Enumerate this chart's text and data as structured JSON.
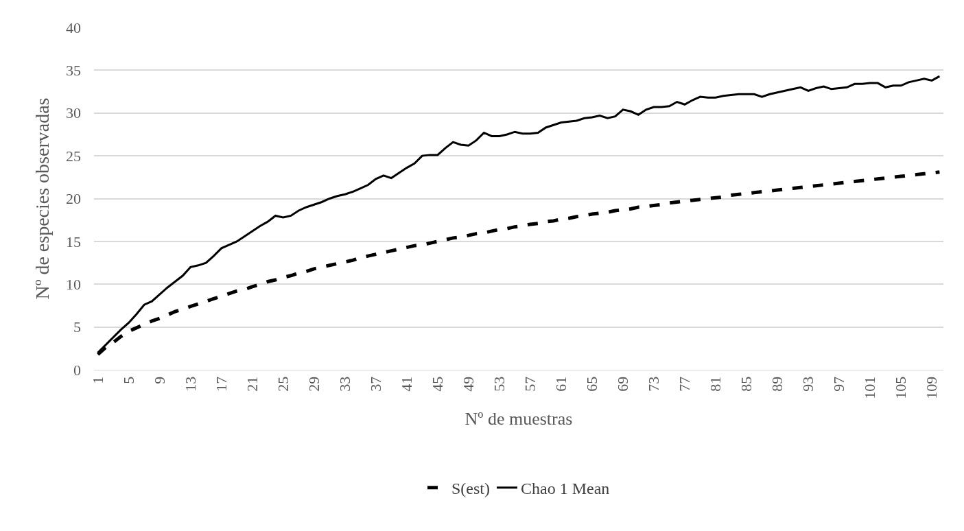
{
  "chart_data": {
    "type": "line",
    "xlabel": "Nº de muestras",
    "ylabel": "Nº de especies observadas",
    "categories": [
      "1",
      null,
      null,
      null,
      "5",
      null,
      null,
      null,
      "9",
      null,
      null,
      null,
      "13",
      null,
      null,
      null,
      "17",
      null,
      null,
      null,
      "21",
      null,
      null,
      null,
      "25",
      null,
      null,
      null,
      "29",
      null,
      null,
      null,
      "33",
      null,
      null,
      null,
      "37",
      null,
      null,
      null,
      "41",
      null,
      null,
      null,
      "45",
      null,
      null,
      null,
      "49",
      null,
      null,
      null,
      "53",
      null,
      null,
      null,
      "57",
      null,
      null,
      null,
      "61",
      null,
      null,
      null,
      "65",
      null,
      null,
      null,
      "69",
      null,
      null,
      null,
      "73",
      null,
      null,
      null,
      "77",
      null,
      null,
      null,
      "81",
      null,
      null,
      null,
      "85",
      null,
      null,
      null,
      "89",
      null,
      null,
      null,
      "93",
      null,
      null,
      null,
      "97",
      null,
      null,
      null,
      "101",
      null,
      null,
      null,
      "105",
      null,
      null,
      null,
      "109",
      null
    ],
    "series": [
      {
        "name": "S(est)",
        "color": "#000000",
        "line_style": "dashed",
        "values": [
          1.8,
          2.6,
          3.2,
          3.9,
          4.5,
          4.9,
          5.3,
          5.7,
          6.0,
          6.4,
          6.8,
          7.1,
          7.4,
          7.7,
          8.0,
          8.3,
          8.6,
          8.9,
          9.2,
          9.4,
          9.7,
          10.0,
          10.3,
          10.5,
          10.8,
          11.0,
          11.3,
          11.5,
          11.8,
          12.0,
          12.2,
          12.4,
          12.6,
          12.8,
          13.1,
          13.3,
          13.5,
          13.7,
          13.9,
          14.1,
          14.3,
          14.5,
          14.6,
          14.8,
          15.0,
          15.2,
          15.4,
          15.5,
          15.7,
          15.9,
          16.0,
          16.2,
          16.4,
          16.5,
          16.7,
          16.8,
          17.0,
          17.1,
          17.3,
          17.4,
          17.6,
          17.7,
          17.9,
          18.0,
          18.2,
          18.3,
          18.4,
          18.6,
          18.7,
          18.8,
          19.0,
          19.1,
          19.2,
          19.3,
          19.5,
          19.6,
          19.7,
          19.8,
          19.9,
          20.0,
          20.1,
          20.2,
          20.4,
          20.5,
          20.6,
          20.7,
          20.8,
          20.9,
          21.0,
          21.1,
          21.2,
          21.3,
          21.4,
          21.5,
          21.6,
          21.7,
          21.8,
          21.9,
          22.0,
          22.1,
          22.2,
          22.3,
          22.4,
          22.5,
          22.6,
          22.7,
          22.8,
          22.9,
          23.0,
          23.1
        ]
      },
      {
        "name": "Chao 1 Mean",
        "color": "#000000",
        "line_style": "solid",
        "values": [
          2.0,
          2.9,
          3.8,
          4.7,
          5.5,
          6.5,
          7.6,
          8.0,
          8.8,
          9.6,
          10.3,
          11.0,
          12.0,
          12.2,
          12.5,
          13.3,
          14.2,
          14.6,
          15.0,
          15.6,
          16.2,
          16.8,
          17.3,
          18.0,
          17.8,
          18.0,
          18.6,
          19.0,
          19.3,
          19.6,
          20.0,
          20.3,
          20.5,
          20.8,
          21.2,
          21.6,
          22.3,
          22.7,
          22.4,
          23.0,
          23.6,
          24.1,
          25.0,
          25.1,
          25.1,
          25.9,
          26.6,
          26.3,
          26.2,
          26.8,
          27.7,
          27.3,
          27.3,
          27.5,
          27.8,
          27.6,
          27.6,
          27.7,
          28.3,
          28.6,
          28.9,
          29.0,
          29.1,
          29.4,
          29.5,
          29.7,
          29.4,
          29.6,
          30.4,
          30.2,
          29.8,
          30.4,
          30.7,
          30.7,
          30.8,
          31.3,
          31.0,
          31.5,
          31.9,
          31.8,
          31.8,
          32.0,
          32.1,
          32.2,
          32.2,
          32.2,
          31.9,
          32.2,
          32.4,
          32.6,
          32.8,
          33.0,
          32.6,
          32.9,
          33.1,
          32.8,
          32.9,
          33.0,
          33.4,
          33.4,
          33.5,
          33.5,
          33.0,
          33.2,
          33.2,
          33.6,
          33.8,
          34.0,
          33.8,
          34.3
        ]
      }
    ],
    "ylim": [
      0,
      40
    ],
    "yticks": [
      0,
      5,
      10,
      15,
      20,
      25,
      30,
      35,
      40
    ],
    "grid": "y",
    "legend": "bottom",
    "marker": "none"
  }
}
